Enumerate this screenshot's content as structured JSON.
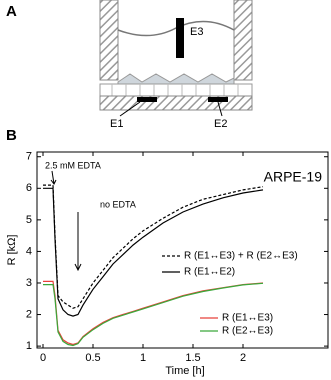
{
  "diagram": {
    "panel_label": "A",
    "labels": [
      "E3",
      "E1",
      "E2"
    ]
  },
  "chart_data": {
    "type": "line",
    "panel_label": "B",
    "title": "ARPE-19",
    "xlabel": "Time [h]",
    "ylabel": "R [kΩ]",
    "annotations": [
      "2.5 mM EDTA",
      "no EDTA"
    ],
    "x": [
      0,
      0.05,
      0.1,
      0.12,
      0.15,
      0.2,
      0.25,
      0.3,
      0.35,
      0.4,
      0.5,
      0.6,
      0.7,
      0.8,
      0.9,
      1.0,
      1.2,
      1.4,
      1.6,
      1.8,
      2.0,
      2.2
    ],
    "series": [
      {
        "name": "R (E1↔E3) + R (E2↔E3)",
        "color": "#000000",
        "dash": "dashed",
        "values": [
          6.1,
          6.1,
          6.1,
          4.5,
          2.6,
          2.4,
          2.3,
          2.2,
          2.25,
          2.5,
          3.0,
          3.4,
          3.8,
          4.1,
          4.4,
          4.65,
          5.05,
          5.4,
          5.65,
          5.8,
          5.95,
          6.05
        ]
      },
      {
        "name": "R (E1↔E2)",
        "color": "#000000",
        "dash": "solid",
        "values": [
          6.0,
          6.0,
          6.0,
          4.4,
          2.5,
          2.15,
          2.0,
          1.95,
          2.0,
          2.3,
          2.8,
          3.2,
          3.6,
          3.9,
          4.2,
          4.45,
          4.9,
          5.25,
          5.5,
          5.7,
          5.85,
          5.95
        ]
      },
      {
        "name": "R (E1↔E3)",
        "color": "#e8403a",
        "dash": "solid",
        "values": [
          3.05,
          3.05,
          3.05,
          2.6,
          1.5,
          1.2,
          1.1,
          1.05,
          1.1,
          1.3,
          1.55,
          1.75,
          1.9,
          2.0,
          2.1,
          2.2,
          2.4,
          2.6,
          2.75,
          2.85,
          2.95,
          3.0
        ]
      },
      {
        "name": "R (E2↔E3)",
        "color": "#3aa83a",
        "dash": "solid",
        "values": [
          2.95,
          2.95,
          2.95,
          2.5,
          1.45,
          1.15,
          1.05,
          1.02,
          1.08,
          1.28,
          1.52,
          1.72,
          1.88,
          1.98,
          2.08,
          2.18,
          2.38,
          2.58,
          2.73,
          2.84,
          2.94,
          2.99
        ]
      }
    ],
    "xlim": [
      -0.06,
      2.85
    ],
    "xticks": [
      0,
      0.5,
      1,
      1.5,
      2
    ],
    "ylim": [
      0.94,
      7.15
    ],
    "yticks": [
      1,
      2,
      3,
      4,
      5,
      6,
      7
    ]
  }
}
